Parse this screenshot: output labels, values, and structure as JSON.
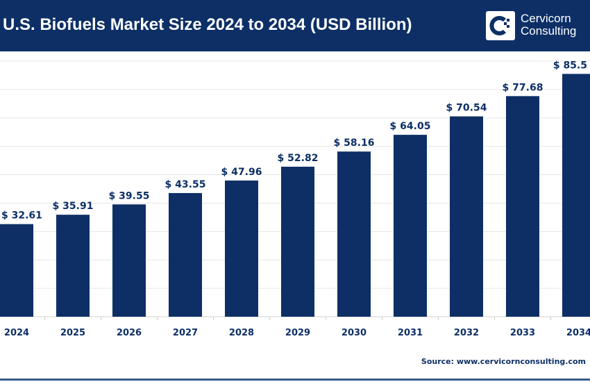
{
  "header": {
    "title": "U.S. Biofuels Market Size 2024 to 2034 (USD Billion)",
    "logo_line1": "Cervicorn",
    "logo_line2": "Consulting"
  },
  "source": "Source: www.cervicornconsulting.com",
  "colors": {
    "bar": "#0d2f66",
    "header": "#0d2f66",
    "grid": "#e6e6e6"
  },
  "chart_data": {
    "type": "bar",
    "title": "U.S. Biofuels Market Size 2024 to 2034 (USD Billion)",
    "xlabel": "",
    "ylabel": "",
    "ylim": [
      0,
      90
    ],
    "grid": true,
    "categories": [
      "2024",
      "2025",
      "2026",
      "2027",
      "2028",
      "2029",
      "2030",
      "2031",
      "2032",
      "2033",
      "2034"
    ],
    "values": [
      32.61,
      35.91,
      39.55,
      43.55,
      47.96,
      52.82,
      58.16,
      64.05,
      70.54,
      77.68,
      85.5
    ],
    "data_labels": [
      "$ 32.61",
      "$ 35.91",
      "$ 39.55",
      "$ 43.55",
      "$ 47.96",
      "$ 52.82",
      "$ 58.16",
      "$ 64.05",
      "$ 70.54",
      "$ 77.68",
      "$ 85.5"
    ]
  }
}
